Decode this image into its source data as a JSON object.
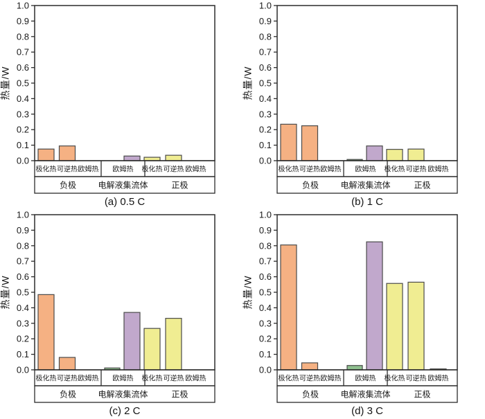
{
  "chart_data": {
    "type": "bar",
    "layout": "2x2-grid",
    "ylabel": "热量/W",
    "ylim": [
      0,
      1.0
    ],
    "ytick_step": 0.1,
    "grid": false,
    "legend": "none",
    "colors": {
      "negative_fill": "#F5B183",
      "electrolyte_fill": "#8FC08F",
      "collector_fill": "#C1A8CC",
      "positive_fill": "#F0ED92",
      "bar_outline": "#4A4A4A",
      "axis": "#2B2B2B"
    },
    "charts": [
      {
        "caption": "(a) 0.5 C",
        "ylabel": "热量/W",
        "groups": [
          {
            "label": "负极",
            "sublabels": [
              "极化热",
              "可逆热",
              "欧姆热"
            ],
            "bars": [
              {
                "label": "极化热",
                "value": 0.075,
                "color": "#F5B183"
              },
              {
                "label": "可逆热",
                "value": 0.095,
                "color": "#F5B183"
              },
              {
                "label": "欧姆热",
                "value": 0,
                "color": "#F5B183"
              }
            ]
          },
          {
            "label": "电解液集流体",
            "sublabels": [
              "欧姆热"
            ],
            "bars": [
              {
                "label": "欧姆热",
                "value": 0,
                "color": "#8FC08F"
              },
              {
                "label": "欧姆热",
                "value": 0.03,
                "color": "#C1A8CC"
              }
            ]
          },
          {
            "label": "正极",
            "sublabels": [
              "极化热",
              "可逆热",
              "欧姆热"
            ],
            "bars": [
              {
                "label": "极化热",
                "value": 0.022,
                "color": "#F0ED92"
              },
              {
                "label": "可逆热",
                "value": 0.035,
                "color": "#F0ED92"
              },
              {
                "label": "欧姆热",
                "value": 0,
                "color": "#F0ED92"
              }
            ]
          }
        ]
      },
      {
        "caption": "(b) 1 C",
        "ylabel": "热量/W",
        "groups": [
          {
            "label": "负极",
            "sublabels": [
              "极化热",
              "可逆热",
              "欧姆热"
            ],
            "bars": [
              {
                "label": "极化热",
                "value": 0.235,
                "color": "#F5B183"
              },
              {
                "label": "可逆热",
                "value": 0.225,
                "color": "#F5B183"
              },
              {
                "label": "欧姆热",
                "value": 0,
                "color": "#F5B183"
              }
            ]
          },
          {
            "label": "电解液集流体",
            "sublabels": [
              "欧姆热"
            ],
            "bars": [
              {
                "label": "欧姆热",
                "value": 0.008,
                "color": "#8FC08F"
              },
              {
                "label": "欧姆热",
                "value": 0.095,
                "color": "#C1A8CC"
              }
            ]
          },
          {
            "label": "正极",
            "sublabels": [
              "极化热",
              "可逆热",
              "欧姆热"
            ],
            "bars": [
              {
                "label": "极化热",
                "value": 0.073,
                "color": "#F0ED92"
              },
              {
                "label": "可逆热",
                "value": 0.075,
                "color": "#F0ED92"
              },
              {
                "label": "欧姆热",
                "value": 0,
                "color": "#F0ED92"
              }
            ]
          }
        ]
      },
      {
        "caption": "(c) 2 C",
        "ylabel": "热量/W",
        "groups": [
          {
            "label": "负极",
            "sublabels": [
              "极化热",
              "可逆热",
              "欧姆热"
            ],
            "bars": [
              {
                "label": "极化热",
                "value": 0.485,
                "color": "#F5B183"
              },
              {
                "label": "可逆热",
                "value": 0.08,
                "color": "#F5B183"
              },
              {
                "label": "欧姆热",
                "value": 0,
                "color": "#F5B183"
              }
            ]
          },
          {
            "label": "电解液集流体",
            "sublabels": [
              "欧姆热"
            ],
            "bars": [
              {
                "label": "欧姆热",
                "value": 0.012,
                "color": "#8FC08F"
              },
              {
                "label": "欧姆热",
                "value": 0.37,
                "color": "#C1A8CC"
              }
            ]
          },
          {
            "label": "正极",
            "sublabels": [
              "极化热",
              "可逆热",
              "欧姆热"
            ],
            "bars": [
              {
                "label": "极化热",
                "value": 0.267,
                "color": "#F0ED92"
              },
              {
                "label": "可逆热",
                "value": 0.332,
                "color": "#F0ED92"
              },
              {
                "label": "欧姆热",
                "value": 0,
                "color": "#F0ED92"
              }
            ]
          }
        ]
      },
      {
        "caption": "(d) 3 C",
        "ylabel": "热量/W",
        "groups": [
          {
            "label": "负极",
            "sublabels": [
              "极化热",
              "可逆热",
              "欧姆热"
            ],
            "bars": [
              {
                "label": "极化热",
                "value": 0.805,
                "color": "#F5B183"
              },
              {
                "label": "可逆热",
                "value": 0.045,
                "color": "#F5B183"
              },
              {
                "label": "欧姆热",
                "value": 0,
                "color": "#F5B183"
              }
            ]
          },
          {
            "label": "电解液集流体",
            "sublabels": [
              "欧姆热"
            ],
            "bars": [
              {
                "label": "欧姆热",
                "value": 0.028,
                "color": "#8FC08F"
              },
              {
                "label": "欧姆热",
                "value": 0.825,
                "color": "#C1A8CC"
              }
            ]
          },
          {
            "label": "正极",
            "sublabels": [
              "极化热",
              "可逆热",
              "欧姆热"
            ],
            "bars": [
              {
                "label": "极化热",
                "value": 0.557,
                "color": "#F0ED92"
              },
              {
                "label": "可逆热",
                "value": 0.565,
                "color": "#F0ED92"
              },
              {
                "label": "欧姆热",
                "value": 0.006,
                "color": "#F0ED92"
              }
            ]
          }
        ]
      }
    ]
  }
}
